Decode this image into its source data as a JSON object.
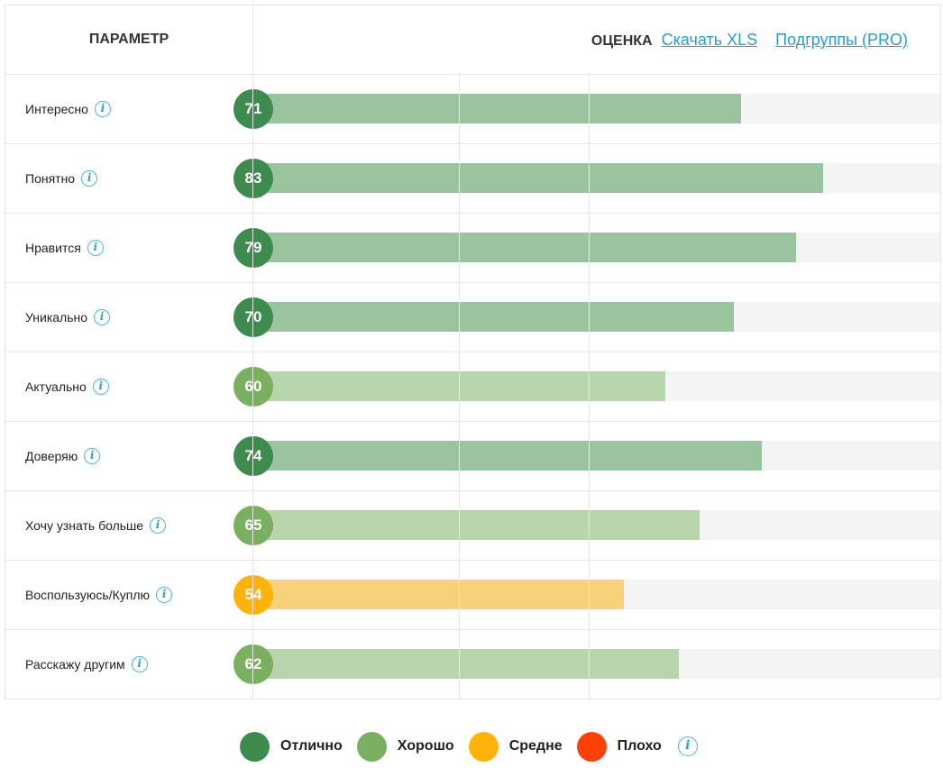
{
  "header": {
    "param_label": "ПАРАМЕТР",
    "score_label": "ОЦЕНКА",
    "download_link": "Скачать XLS",
    "subgroups_link": "Подгруппы (PRO)"
  },
  "info_icon_glyph": "i",
  "colors": {
    "excellent": "#3d8b4f",
    "excellent_bar": "#9ac39f",
    "good": "#7aaf5f",
    "good_bar": "#b7d4ac",
    "average": "#ffb20a",
    "average_bar": "#f8d27a",
    "bad": "#ff4008",
    "track": "#f4f4f4",
    "link": "#2e9cc9"
  },
  "chart_data": {
    "type": "bar",
    "orientation": "horizontal",
    "xlim": [
      0,
      100
    ],
    "categories": [
      "Интересно",
      "Понятно",
      "Нравится",
      "Уникально",
      "Актуально",
      "Доверяю",
      "Хочу узнать больше",
      "Воспользуюсь/Куплю",
      "Расскажу другим"
    ],
    "values": [
      71,
      83,
      79,
      70,
      60,
      74,
      65,
      54,
      62
    ],
    "ratings": [
      "excellent",
      "excellent",
      "excellent",
      "excellent",
      "good",
      "excellent",
      "good",
      "average",
      "good"
    ],
    "legend": [
      {
        "key": "excellent",
        "label": "Отлично"
      },
      {
        "key": "good",
        "label": "Хорошо"
      },
      {
        "key": "average",
        "label": "Средне"
      },
      {
        "key": "bad",
        "label": "Плохо"
      }
    ],
    "legend_position": "bottom-center"
  }
}
